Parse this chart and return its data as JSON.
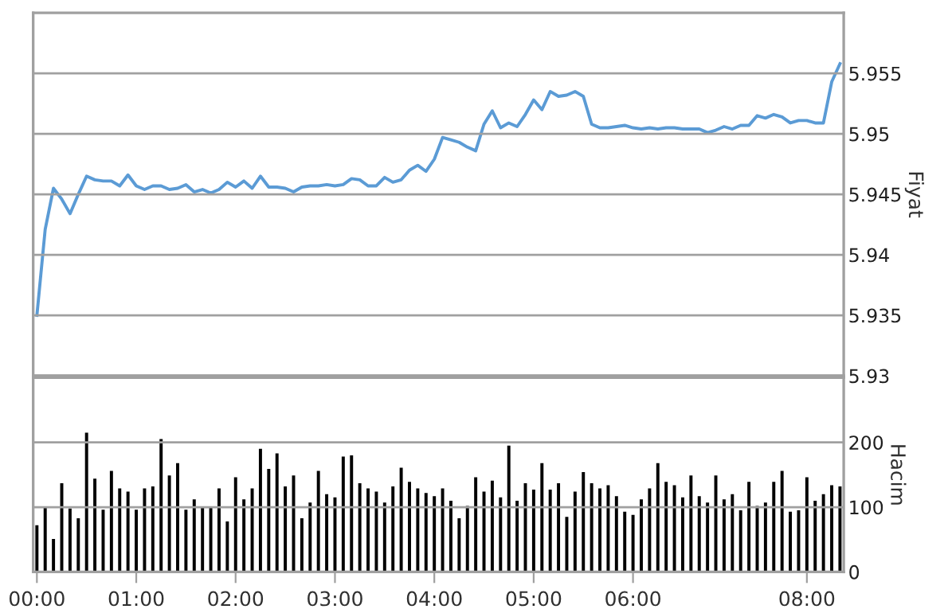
{
  "chart_data": [
    {
      "type": "line",
      "ylabel": "Fiyat",
      "ylim": [
        5.93,
        5.96
      ],
      "yticks": [
        5.93,
        5.935,
        5.94,
        5.945,
        5.95,
        5.955
      ],
      "grid": "y",
      "tick_labels": "y",
      "marker": "none",
      "line_style": "solid",
      "categories": [
        null,
        null,
        null,
        null,
        null,
        null,
        null,
        null,
        null,
        null,
        null,
        null,
        null,
        null,
        null,
        null,
        null,
        null,
        null,
        null,
        null,
        null,
        null,
        null,
        null,
        null,
        null,
        null,
        null,
        null,
        null,
        null,
        null,
        null,
        null,
        null,
        null,
        null,
        null,
        null,
        null,
        null,
        null,
        null,
        null,
        null,
        null,
        null,
        null,
        null,
        null,
        null,
        null,
        null,
        null,
        null,
        null,
        null,
        null,
        null,
        null,
        null,
        null,
        null,
        null,
        null,
        null,
        null,
        null,
        null,
        null,
        null,
        null,
        null,
        null,
        null,
        null,
        null,
        null,
        null,
        null,
        null,
        null,
        null,
        null,
        null,
        null,
        null,
        null,
        null,
        null,
        null,
        null,
        null,
        null,
        null,
        null,
        null
      ],
      "series": [
        {
          "color": "#5b9bd5",
          "values": [
            5.935,
            5.9421,
            5.9455,
            5.9446,
            5.9434,
            5.945,
            5.9465,
            5.9462,
            5.9461,
            5.9461,
            5.9457,
            5.9466,
            5.9457,
            5.9454,
            5.9457,
            5.9457,
            5.9454,
            5.9455,
            5.9458,
            5.9452,
            5.9454,
            5.9451,
            5.9454,
            5.946,
            5.9456,
            5.9461,
            5.9455,
            5.9465,
            5.9456,
            5.9456,
            5.9455,
            5.9452,
            5.9456,
            5.9457,
            5.9457,
            5.9458,
            5.9457,
            5.9458,
            5.9463,
            5.9462,
            5.9457,
            5.9457,
            5.9464,
            5.946,
            5.9462,
            5.947,
            5.9474,
            5.9469,
            5.9479,
            5.9497,
            5.9495,
            5.9493,
            5.9489,
            5.9486,
            5.9508,
            5.9519,
            5.9505,
            5.9509,
            5.9506,
            5.9516,
            5.9528,
            5.952,
            5.9535,
            5.9531,
            5.9532,
            5.9535,
            5.9531,
            5.9508,
            5.9505,
            5.9505,
            5.9506,
            5.9507,
            5.9505,
            5.9504,
            5.9505,
            5.9504,
            5.9505,
            5.9505,
            5.9504,
            5.9504,
            5.9504,
            5.9501,
            5.9503,
            5.9506,
            5.9504,
            5.9507,
            5.9507,
            5.9515,
            5.9513,
            5.9516,
            5.9514,
            5.9509,
            5.9511,
            5.9511,
            5.9509,
            5.9509,
            5.9543,
            5.9558
          ]
        }
      ]
    },
    {
      "type": "bar",
      "ylabel": "Hacim",
      "ylim": [
        0,
        300
      ],
      "yticks": [
        0,
        100,
        200
      ],
      "grid": "y",
      "categories": [
        "00:00",
        null,
        null,
        null,
        null,
        null,
        null,
        null,
        null,
        null,
        null,
        null,
        "01:00",
        null,
        null,
        null,
        null,
        null,
        null,
        null,
        null,
        null,
        null,
        null,
        "02:00",
        null,
        null,
        null,
        null,
        null,
        null,
        null,
        null,
        null,
        null,
        null,
        "03:00",
        null,
        null,
        null,
        null,
        null,
        null,
        null,
        null,
        null,
        null,
        null,
        "04:00",
        null,
        null,
        null,
        null,
        null,
        null,
        null,
        null,
        null,
        null,
        null,
        "05:00",
        null,
        null,
        null,
        null,
        null,
        null,
        null,
        null,
        null,
        null,
        null,
        "06:00",
        null,
        null,
        null,
        null,
        null,
        null,
        null,
        null,
        null,
        null,
        null,
        null,
        null,
        null,
        null,
        null,
        null,
        null,
        null,
        null,
        "08:00",
        null,
        null,
        null,
        null
      ],
      "series": [
        {
          "color": "#000000",
          "values": [
            72,
            100,
            51,
            137,
            98,
            83,
            215,
            144,
            96,
            156,
            129,
            124,
            96,
            129,
            132,
            205,
            149,
            168,
            96,
            112,
            100,
            100,
            129,
            78,
            146,
            112,
            129,
            190,
            159,
            183,
            132,
            149,
            83,
            107,
            156,
            120,
            115,
            178,
            180,
            137,
            129,
            124,
            107,
            132,
            161,
            139,
            129,
            122,
            117,
            129,
            110,
            83,
            102,
            146,
            124,
            141,
            115,
            195,
            110,
            137,
            127,
            168,
            127,
            137,
            85,
            124,
            154,
            137,
            129,
            134,
            117,
            93,
            88,
            112,
            129,
            168,
            139,
            134,
            115,
            149,
            117,
            107,
            149,
            112,
            120,
            95,
            139,
            102,
            107,
            139,
            156,
            93,
            95,
            146,
            110,
            120,
            134,
            132
          ]
        }
      ]
    }
  ]
}
